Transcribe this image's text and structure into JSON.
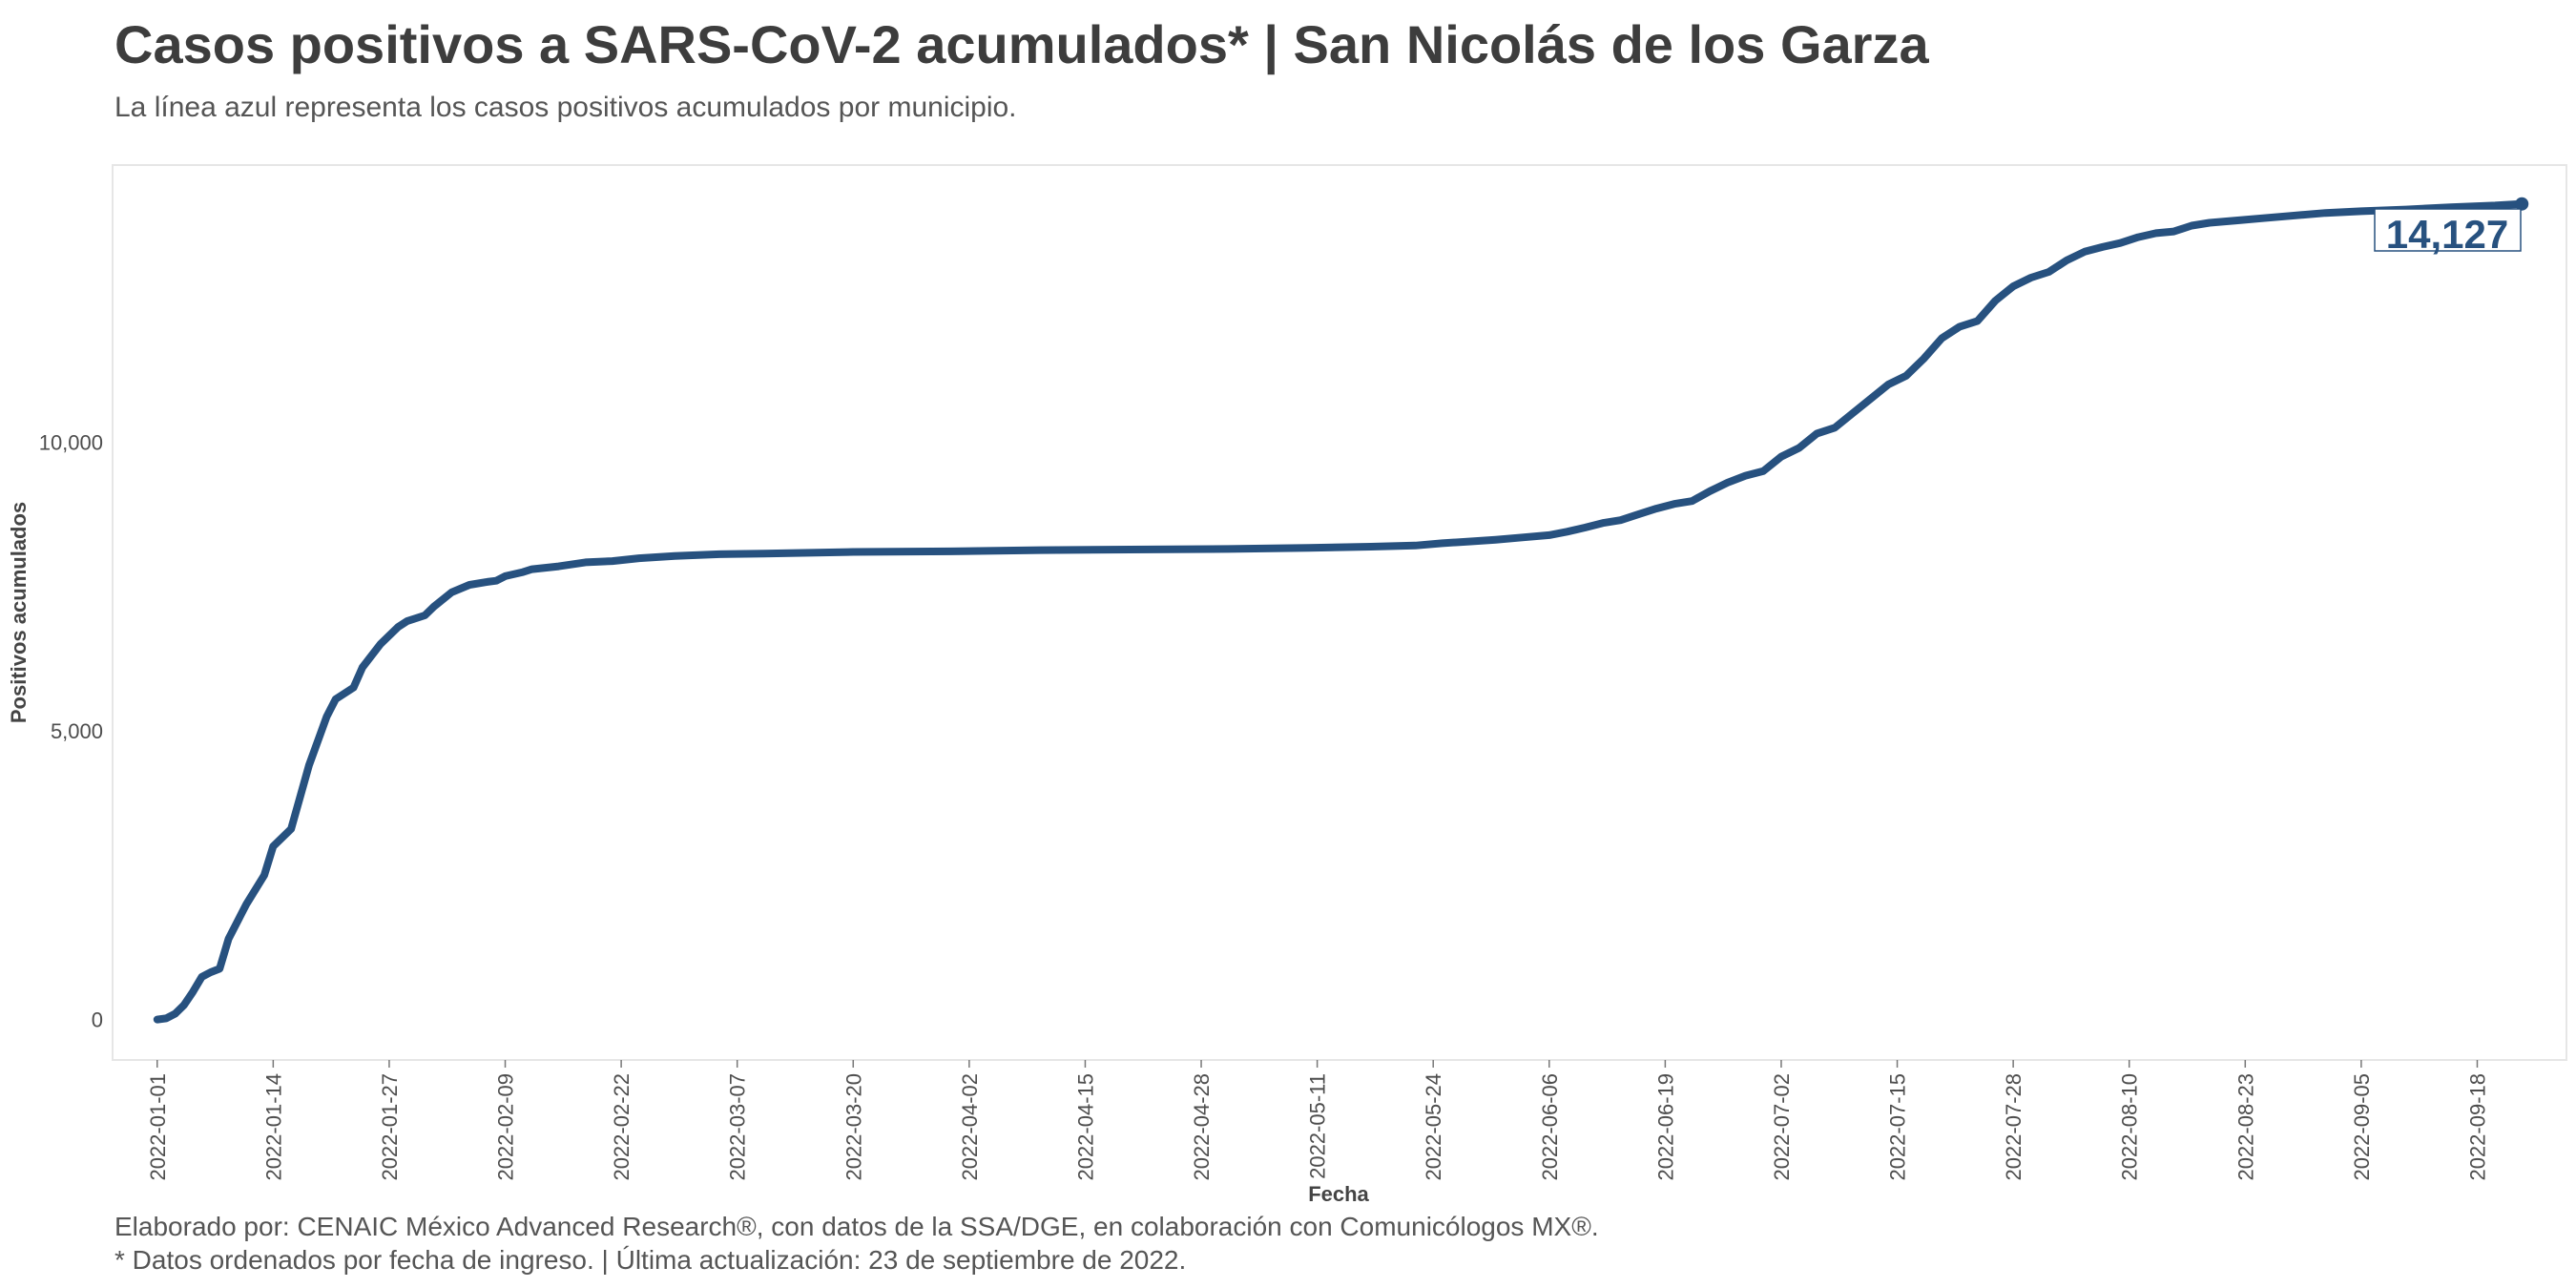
{
  "title": "Casos positivos a SARS-CoV-2 acumulados* | San Nicolás de los Garza",
  "subtitle": "La línea azul representa los casos positivos acumulados por municipio.",
  "caption_line1": "Elaborado por: CENAIC México Advanced Research®, con datos de la SSA/DGE, en colaboración con Comunicólogos MX®.",
  "caption_line2": "* Datos ordenados por fecha de ingreso. | Última actualización: 23 de septiembre de 2022.",
  "colors": {
    "line": "#27517f",
    "panel_border": "#e6e6e6",
    "text": "#3c3c3c"
  },
  "chart_data": {
    "type": "line",
    "xlabel": "Fecha",
    "ylabel": "Positivos acumulados",
    "x_is_date": true,
    "xlim": [
      "2021-12-27",
      "2022-09-28"
    ],
    "ylim": [
      -700,
      14800
    ],
    "y_ticks": [
      0,
      5000,
      10000
    ],
    "y_tick_labels": [
      "0",
      "5,000",
      "10,000"
    ],
    "x_ticks": [
      "2022-01-01",
      "2022-01-14",
      "2022-01-27",
      "2022-02-09",
      "2022-02-22",
      "2022-03-07",
      "2022-03-20",
      "2022-04-02",
      "2022-04-15",
      "2022-04-28",
      "2022-05-11",
      "2022-05-24",
      "2022-06-06",
      "2022-06-19",
      "2022-07-02",
      "2022-07-15",
      "2022-07-28",
      "2022-08-10",
      "2022-08-23",
      "2022-09-05",
      "2022-09-18"
    ],
    "grid": false,
    "end_label": "14,127",
    "series": [
      {
        "points": [
          [
            "2022-01-01",
            0
          ],
          [
            "2022-01-02",
            20
          ],
          [
            "2022-01-03",
            100
          ],
          [
            "2022-01-04",
            250
          ],
          [
            "2022-01-05",
            480
          ],
          [
            "2022-01-06",
            740
          ],
          [
            "2022-01-07",
            820
          ],
          [
            "2022-01-08",
            880
          ],
          [
            "2022-01-09",
            1400
          ],
          [
            "2022-01-11",
            2000
          ],
          [
            "2022-01-13",
            2500
          ],
          [
            "2022-01-14",
            3000
          ],
          [
            "2022-01-16",
            3300
          ],
          [
            "2022-01-18",
            4400
          ],
          [
            "2022-01-20",
            5250
          ],
          [
            "2022-01-21",
            5550
          ],
          [
            "2022-01-23",
            5750
          ],
          [
            "2022-01-24",
            6100
          ],
          [
            "2022-01-26",
            6500
          ],
          [
            "2022-01-28",
            6800
          ],
          [
            "2022-01-29",
            6900
          ],
          [
            "2022-01-31",
            7000
          ],
          [
            "2022-02-01",
            7150
          ],
          [
            "2022-02-03",
            7400
          ],
          [
            "2022-02-05",
            7530
          ],
          [
            "2022-02-07",
            7580
          ],
          [
            "2022-02-08",
            7600
          ],
          [
            "2022-02-09",
            7680
          ],
          [
            "2022-02-11",
            7750
          ],
          [
            "2022-02-12",
            7800
          ],
          [
            "2022-02-15",
            7850
          ],
          [
            "2022-02-18",
            7920
          ],
          [
            "2022-02-21",
            7940
          ],
          [
            "2022-02-24",
            7990
          ],
          [
            "2022-02-28",
            8030
          ],
          [
            "2022-03-05",
            8060
          ],
          [
            "2022-03-10",
            8070
          ],
          [
            "2022-03-20",
            8100
          ],
          [
            "2022-03-31",
            8110
          ],
          [
            "2022-04-10",
            8130
          ],
          [
            "2022-04-20",
            8140
          ],
          [
            "2022-05-01",
            8150
          ],
          [
            "2022-05-10",
            8170
          ],
          [
            "2022-05-17",
            8190
          ],
          [
            "2022-05-22",
            8210
          ],
          [
            "2022-05-25",
            8250
          ],
          [
            "2022-05-28",
            8280
          ],
          [
            "2022-05-31",
            8310
          ],
          [
            "2022-06-03",
            8350
          ],
          [
            "2022-06-06",
            8390
          ],
          [
            "2022-06-08",
            8450
          ],
          [
            "2022-06-10",
            8520
          ],
          [
            "2022-06-12",
            8600
          ],
          [
            "2022-06-14",
            8650
          ],
          [
            "2022-06-16",
            8750
          ],
          [
            "2022-06-18",
            8850
          ],
          [
            "2022-06-20",
            8930
          ],
          [
            "2022-06-22",
            8980
          ],
          [
            "2022-06-24",
            9150
          ],
          [
            "2022-06-26",
            9300
          ],
          [
            "2022-06-28",
            9420
          ],
          [
            "2022-06-30",
            9500
          ],
          [
            "2022-07-02",
            9750
          ],
          [
            "2022-07-04",
            9900
          ],
          [
            "2022-07-06",
            10150
          ],
          [
            "2022-07-08",
            10250
          ],
          [
            "2022-07-10",
            10500
          ],
          [
            "2022-07-12",
            10750
          ],
          [
            "2022-07-14",
            11000
          ],
          [
            "2022-07-16",
            11150
          ],
          [
            "2022-07-18",
            11450
          ],
          [
            "2022-07-20",
            11800
          ],
          [
            "2022-07-22",
            12000
          ],
          [
            "2022-07-24",
            12100
          ],
          [
            "2022-07-26",
            12450
          ],
          [
            "2022-07-28",
            12700
          ],
          [
            "2022-07-30",
            12850
          ],
          [
            "2022-08-01",
            12950
          ],
          [
            "2022-08-03",
            13150
          ],
          [
            "2022-08-05",
            13300
          ],
          [
            "2022-08-07",
            13380
          ],
          [
            "2022-08-09",
            13450
          ],
          [
            "2022-08-11",
            13550
          ],
          [
            "2022-08-13",
            13620
          ],
          [
            "2022-08-15",
            13650
          ],
          [
            "2022-08-17",
            13750
          ],
          [
            "2022-08-19",
            13800
          ],
          [
            "2022-08-22",
            13840
          ],
          [
            "2022-08-25",
            13880
          ],
          [
            "2022-08-28",
            13920
          ],
          [
            "2022-09-01",
            13970
          ],
          [
            "2022-09-05",
            14000
          ],
          [
            "2022-09-10",
            14030
          ],
          [
            "2022-09-15",
            14070
          ],
          [
            "2022-09-20",
            14100
          ],
          [
            "2022-09-23",
            14127
          ]
        ]
      }
    ]
  }
}
